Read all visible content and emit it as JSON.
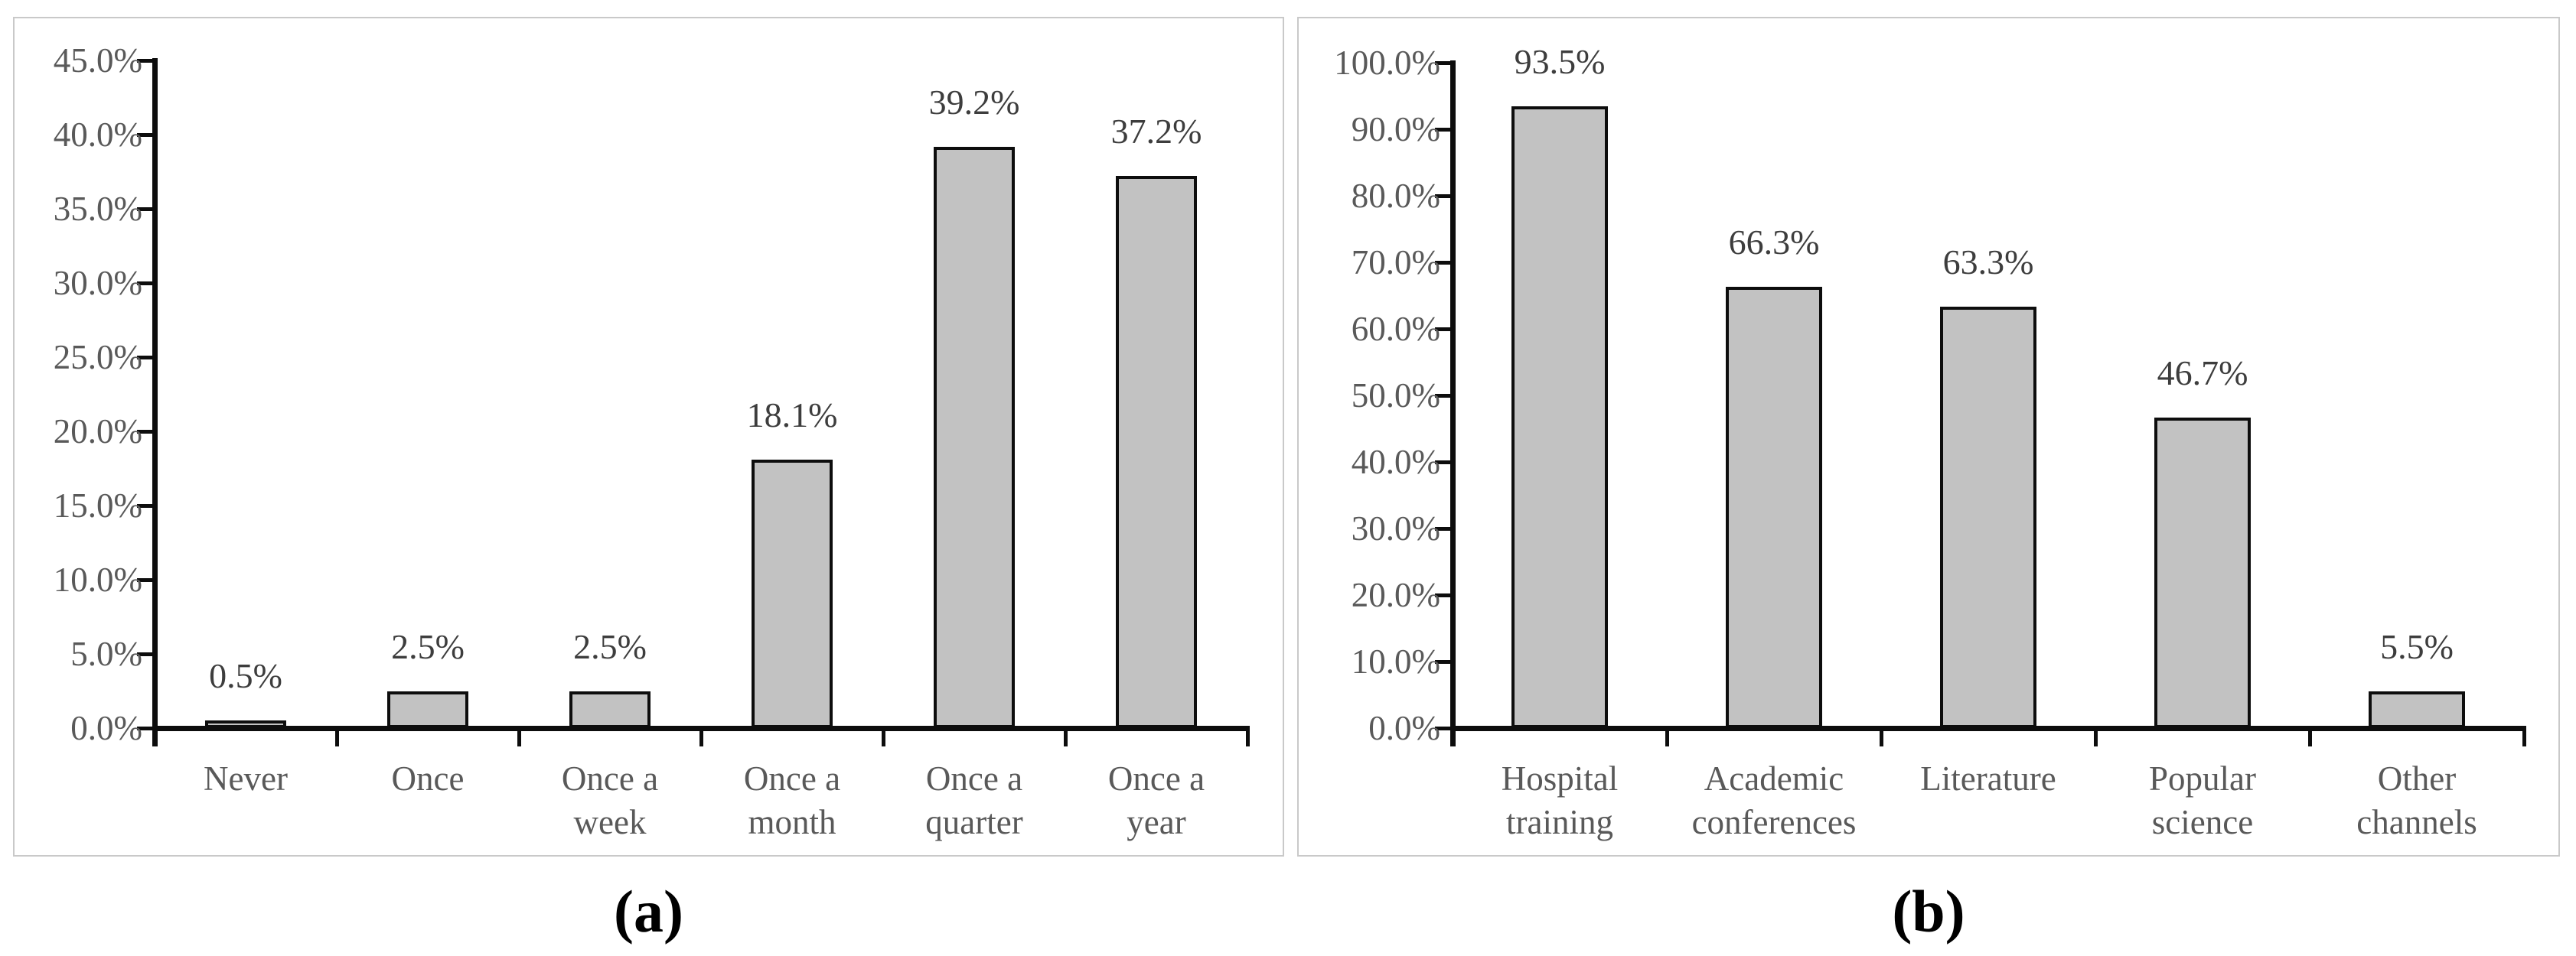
{
  "figure": {
    "background": "#ffffff",
    "panel_border_color": "#c9c9c9",
    "captions": {
      "a": "(a)",
      "b": "(b)"
    }
  },
  "chart_data": [
    {
      "id": "a",
      "type": "bar",
      "title": "",
      "xlabel": "",
      "ylabel": "",
      "categories": [
        "Never",
        "Once",
        "Once a week",
        "Once a month",
        "Once a quarter",
        "Once a year"
      ],
      "category_lines": [
        [
          "Never"
        ],
        [
          "Once"
        ],
        [
          "Once a",
          "week"
        ],
        [
          "Once a",
          "month"
        ],
        [
          "Once a",
          "quarter"
        ],
        [
          "Once a",
          "year"
        ]
      ],
      "values": [
        0.5,
        2.5,
        2.5,
        18.1,
        39.2,
        37.2
      ],
      "data_labels": [
        "0.5%",
        "2.5%",
        "2.5%",
        "18.1%",
        "39.2%",
        "37.2%"
      ],
      "y_ticks": [
        "0.0%",
        "5.0%",
        "10.0%",
        "15.0%",
        "20.0%",
        "25.0%",
        "30.0%",
        "35.0%",
        "40.0%",
        "45.0%"
      ],
      "ylim": [
        0,
        45
      ],
      "y_step": 5,
      "grid": false,
      "legend": null,
      "colors": {
        "bar_fill": "#c2c2c2",
        "bar_border": "#0d0d0d",
        "axis": "#0d0d0d",
        "tick_label": "#595959",
        "data_label": "#3d3d3d"
      }
    },
    {
      "id": "b",
      "type": "bar",
      "title": "",
      "xlabel": "",
      "ylabel": "",
      "categories": [
        "Hospital training",
        "Academic conferences",
        "Literature",
        "Popular science",
        "Other channels"
      ],
      "category_lines": [
        [
          "Hospital",
          "training"
        ],
        [
          "Academic",
          "conferences"
        ],
        [
          "Literature"
        ],
        [
          "Popular",
          "science"
        ],
        [
          "Other",
          "channels"
        ]
      ],
      "values": [
        93.5,
        66.3,
        63.3,
        46.7,
        5.5
      ],
      "data_labels": [
        "93.5%",
        "66.3%",
        "63.3%",
        "46.7%",
        "5.5%"
      ],
      "y_ticks": [
        "0.0%",
        "10.0%",
        "20.0%",
        "30.0%",
        "40.0%",
        "50.0%",
        "60.0%",
        "70.0%",
        "80.0%",
        "90.0%",
        "100.0%"
      ],
      "ylim": [
        0,
        100
      ],
      "y_step": 10,
      "grid": false,
      "legend": null,
      "colors": {
        "bar_fill": "#c2c2c2",
        "bar_border": "#0d0d0d",
        "axis": "#0d0d0d",
        "tick_label": "#595959",
        "data_label": "#3d3d3d"
      }
    }
  ]
}
